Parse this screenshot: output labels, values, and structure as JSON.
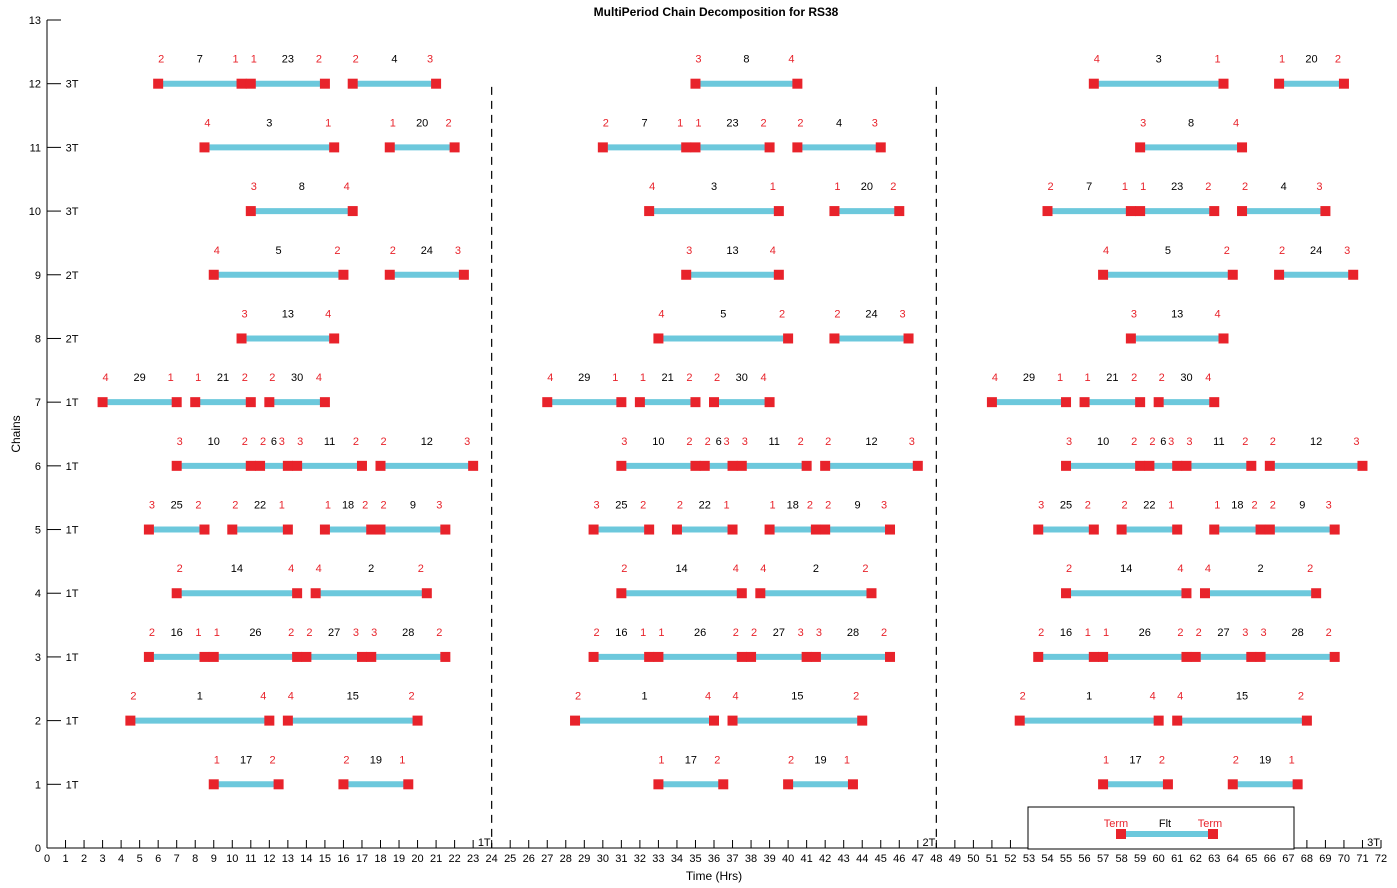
{
  "chart_data": {
    "type": "timeline",
    "title": "MultiPeriod Chain Decomposition for RS38",
    "xlabel": "Time (Hrs)",
    "ylabel": "Chains",
    "xlim": [
      0,
      72
    ],
    "ylim": [
      0,
      13
    ],
    "yticks": [
      0,
      1,
      2,
      3,
      4,
      5,
      6,
      7,
      8,
      9,
      10,
      11,
      12,
      13
    ],
    "chain_labels": [
      "1T",
      "1T",
      "1T",
      "1T",
      "1T",
      "1T",
      "1T",
      "2T",
      "2T",
      "3T",
      "3T",
      "3T"
    ],
    "period_dividers": [
      24,
      48
    ],
    "period_labels": [
      {
        "x": 24,
        "label": "1T"
      },
      {
        "x": 48,
        "label": "2T"
      },
      {
        "x": 72,
        "label": "3T"
      }
    ],
    "colors": {
      "bar": "#6cc8dc",
      "node": "#e8232b",
      "label": "#e8232b"
    },
    "legend": {
      "start_label": "Term",
      "mid_label": "Flt",
      "end_label": "Term",
      "position": "bottom-right"
    },
    "periods": [
      {
        "offset": 0,
        "chains": [
          {
            "y": 1,
            "flights": [
              {
                "s": 9,
                "e": 12.5,
                "from": "1",
                "to": "2",
                "id": "17"
              },
              {
                "s": 16,
                "e": 19.5,
                "from": "2",
                "to": "1",
                "id": "19"
              }
            ]
          },
          {
            "y": 2,
            "flights": [
              {
                "s": 4.5,
                "e": 12,
                "from": "2",
                "to": "4",
                "id": "1"
              },
              {
                "s": 13,
                "e": 20,
                "from": "4",
                "to": "2",
                "id": "15"
              }
            ]
          },
          {
            "y": 3,
            "flights": [
              {
                "s": 5.5,
                "e": 8.5,
                "from": "2",
                "to": "1",
                "id": "16"
              },
              {
                "s": 9,
                "e": 13.5,
                "from": "1",
                "to": "2",
                "id": "26"
              },
              {
                "s": 14,
                "e": 17,
                "from": "2",
                "to": "3",
                "id": "27"
              },
              {
                "s": 17.5,
                "e": 21.5,
                "from": "3",
                "to": "2",
                "id": "28"
              }
            ]
          },
          {
            "y": 4,
            "flights": [
              {
                "s": 7,
                "e": 13.5,
                "from": "2",
                "to": "4",
                "id": "14"
              },
              {
                "s": 14.5,
                "e": 20.5,
                "from": "4",
                "to": "2",
                "id": "2"
              }
            ]
          },
          {
            "y": 5,
            "flights": [
              {
                "s": 5.5,
                "e": 8.5,
                "from": "3",
                "to": "2",
                "id": "25"
              },
              {
                "s": 10,
                "e": 13,
                "from": "2",
                "to": "1",
                "id": "22"
              },
              {
                "s": 15,
                "e": 17.5,
                "from": "1",
                "to": "2",
                "id": "18"
              },
              {
                "s": 18,
                "e": 21.5,
                "from": "2",
                "to": "3",
                "id": "9"
              }
            ]
          },
          {
            "y": 6,
            "flights": [
              {
                "s": 7,
                "e": 11,
                "from": "3",
                "to": "2",
                "id": "10"
              },
              {
                "s": 11.5,
                "e": 13,
                "from": "2",
                "to": "3",
                "id": "6"
              },
              {
                "s": 13.5,
                "e": 17,
                "from": "3",
                "to": "2",
                "id": "11"
              },
              {
                "s": 18,
                "e": 23,
                "from": "2",
                "to": "3",
                "id": "12"
              }
            ]
          },
          {
            "y": 7,
            "flights": [
              {
                "s": 3,
                "e": 7,
                "from": "4",
                "to": "1",
                "id": "29"
              },
              {
                "s": 8,
                "e": 11,
                "from": "1",
                "to": "2",
                "id": "21"
              },
              {
                "s": 12,
                "e": 15,
                "from": "2",
                "to": "4",
                "id": "30"
              }
            ]
          },
          {
            "y": 8,
            "flights": [
              {
                "s": 10.5,
                "e": 15.5,
                "from": "3",
                "to": "4",
                "id": "13"
              }
            ]
          },
          {
            "y": 9,
            "flights": [
              {
                "s": 9,
                "e": 16,
                "from": "4",
                "to": "2",
                "id": "5"
              },
              {
                "s": 18.5,
                "e": 22.5,
                "from": "2",
                "to": "3",
                "id": "24"
              }
            ]
          },
          {
            "y": 10,
            "flights": [
              {
                "s": 11,
                "e": 16.5,
                "from": "3",
                "to": "4",
                "id": "8"
              }
            ]
          },
          {
            "y": 11,
            "flights": [
              {
                "s": 8.5,
                "e": 15.5,
                "from": "4",
                "to": "1",
                "id": "3"
              },
              {
                "s": 18.5,
                "e": 22,
                "from": "1",
                "to": "2",
                "id": "20"
              }
            ]
          },
          {
            "y": 12,
            "flights": [
              {
                "s": 6,
                "e": 10.5,
                "from": "2",
                "to": "1",
                "id": "7"
              },
              {
                "s": 11,
                "e": 15,
                "from": "1",
                "to": "2",
                "id": "23"
              },
              {
                "s": 16.5,
                "e": 21,
                "from": "2",
                "to": "3",
                "id": "4"
              }
            ]
          }
        ]
      },
      {
        "offset": 24,
        "chains": [
          {
            "y": 1,
            "flights": [
              {
                "s": 33,
                "e": 36.5,
                "from": "1",
                "to": "2",
                "id": "17"
              },
              {
                "s": 40,
                "e": 43.5,
                "from": "2",
                "to": "1",
                "id": "19"
              }
            ]
          },
          {
            "y": 2,
            "flights": [
              {
                "s": 28.5,
                "e": 36,
                "from": "2",
                "to": "4",
                "id": "1"
              },
              {
                "s": 37,
                "e": 44,
                "from": "4",
                "to": "2",
                "id": "15"
              }
            ]
          },
          {
            "y": 3,
            "flights": [
              {
                "s": 29.5,
                "e": 32.5,
                "from": "2",
                "to": "1",
                "id": "16"
              },
              {
                "s": 33,
                "e": 37.5,
                "from": "1",
                "to": "2",
                "id": "26"
              },
              {
                "s": 38,
                "e": 41,
                "from": "2",
                "to": "3",
                "id": "27"
              },
              {
                "s": 41.5,
                "e": 45.5,
                "from": "3",
                "to": "2",
                "id": "28"
              }
            ]
          },
          {
            "y": 4,
            "flights": [
              {
                "s": 31,
                "e": 37.5,
                "from": "2",
                "to": "4",
                "id": "14"
              },
              {
                "s": 38.5,
                "e": 44.5,
                "from": "4",
                "to": "2",
                "id": "2"
              }
            ]
          },
          {
            "y": 5,
            "flights": [
              {
                "s": 29.5,
                "e": 32.5,
                "from": "3",
                "to": "2",
                "id": "25"
              },
              {
                "s": 34,
                "e": 37,
                "from": "2",
                "to": "1",
                "id": "22"
              },
              {
                "s": 39,
                "e": 41.5,
                "from": "1",
                "to": "2",
                "id": "18"
              },
              {
                "s": 42,
                "e": 45.5,
                "from": "2",
                "to": "3",
                "id": "9"
              }
            ]
          },
          {
            "y": 6,
            "flights": [
              {
                "s": 31,
                "e": 35,
                "from": "3",
                "to": "2",
                "id": "10"
              },
              {
                "s": 35.5,
                "e": 37,
                "from": "2",
                "to": "3",
                "id": "6"
              },
              {
                "s": 37.5,
                "e": 41,
                "from": "3",
                "to": "2",
                "id": "11"
              },
              {
                "s": 42,
                "e": 47,
                "from": "2",
                "to": "3",
                "id": "12"
              }
            ]
          },
          {
            "y": 7,
            "flights": [
              {
                "s": 27,
                "e": 31,
                "from": "4",
                "to": "1",
                "id": "29"
              },
              {
                "s": 32,
                "e": 35,
                "from": "1",
                "to": "2",
                "id": "21"
              },
              {
                "s": 36,
                "e": 39,
                "from": "2",
                "to": "4",
                "id": "30"
              }
            ]
          },
          {
            "y": 8,
            "flights": [
              {
                "s": 33,
                "e": 40,
                "from": "4",
                "to": "2",
                "id": "5"
              },
              {
                "s": 42.5,
                "e": 46.5,
                "from": "2",
                "to": "3",
                "id": "24"
              }
            ]
          },
          {
            "y": 9,
            "flights": [
              {
                "s": 34.5,
                "e": 39.5,
                "from": "3",
                "to": "4",
                "id": "13"
              }
            ]
          },
          {
            "y": 10,
            "flights": [
              {
                "s": 32.5,
                "e": 39.5,
                "from": "4",
                "to": "1",
                "id": "3"
              },
              {
                "s": 42.5,
                "e": 46,
                "from": "1",
                "to": "2",
                "id": "20"
              }
            ]
          },
          {
            "y": 11,
            "flights": [
              {
                "s": 30,
                "e": 34.5,
                "from": "2",
                "to": "1",
                "id": "7"
              },
              {
                "s": 35,
                "e": 39,
                "from": "1",
                "to": "2",
                "id": "23"
              },
              {
                "s": 40.5,
                "e": 45,
                "from": "2",
                "to": "3",
                "id": "4"
              }
            ]
          },
          {
            "y": 12,
            "flights": [
              {
                "s": 35,
                "e": 40.5,
                "from": "3",
                "to": "4",
                "id": "8"
              }
            ]
          }
        ]
      },
      {
        "offset": 48,
        "chains": [
          {
            "y": 1,
            "flights": [
              {
                "s": 57,
                "e": 60.5,
                "from": "1",
                "to": "2",
                "id": "17"
              },
              {
                "s": 64,
                "e": 67.5,
                "from": "2",
                "to": "1",
                "id": "19"
              }
            ]
          },
          {
            "y": 2,
            "flights": [
              {
                "s": 52.5,
                "e": 60,
                "from": "2",
                "to": "4",
                "id": "1"
              },
              {
                "s": 61,
                "e": 68,
                "from": "4",
                "to": "2",
                "id": "15"
              }
            ]
          },
          {
            "y": 3,
            "flights": [
              {
                "s": 53.5,
                "e": 56.5,
                "from": "2",
                "to": "1",
                "id": "16"
              },
              {
                "s": 57,
                "e": 61.5,
                "from": "1",
                "to": "2",
                "id": "26"
              },
              {
                "s": 62,
                "e": 65,
                "from": "2",
                "to": "3",
                "id": "27"
              },
              {
                "s": 65.5,
                "e": 69.5,
                "from": "3",
                "to": "2",
                "id": "28"
              }
            ]
          },
          {
            "y": 4,
            "flights": [
              {
                "s": 55,
                "e": 61.5,
                "from": "2",
                "to": "4",
                "id": "14"
              },
              {
                "s": 62.5,
                "e": 68.5,
                "from": "4",
                "to": "2",
                "id": "2"
              }
            ]
          },
          {
            "y": 5,
            "flights": [
              {
                "s": 53.5,
                "e": 56.5,
                "from": "3",
                "to": "2",
                "id": "25"
              },
              {
                "s": 58,
                "e": 61,
                "from": "2",
                "to": "1",
                "id": "22"
              },
              {
                "s": 63,
                "e": 65.5,
                "from": "1",
                "to": "2",
                "id": "18"
              },
              {
                "s": 66,
                "e": 69.5,
                "from": "2",
                "to": "3",
                "id": "9"
              }
            ]
          },
          {
            "y": 6,
            "flights": [
              {
                "s": 55,
                "e": 59,
                "from": "3",
                "to": "2",
                "id": "10"
              },
              {
                "s": 59.5,
                "e": 61,
                "from": "2",
                "to": "3",
                "id": "6"
              },
              {
                "s": 61.5,
                "e": 65,
                "from": "3",
                "to": "2",
                "id": "11"
              },
              {
                "s": 66,
                "e": 71,
                "from": "2",
                "to": "3",
                "id": "12"
              }
            ]
          },
          {
            "y": 7,
            "flights": [
              {
                "s": 51,
                "e": 55,
                "from": "4",
                "to": "1",
                "id": "29"
              },
              {
                "s": 56,
                "e": 59,
                "from": "1",
                "to": "2",
                "id": "21"
              },
              {
                "s": 60,
                "e": 63,
                "from": "2",
                "to": "4",
                "id": "30"
              }
            ]
          },
          {
            "y": 8,
            "flights": [
              {
                "s": 58.5,
                "e": 63.5,
                "from": "3",
                "to": "4",
                "id": "13"
              }
            ]
          },
          {
            "y": 9,
            "flights": [
              {
                "s": 57,
                "e": 64,
                "from": "4",
                "to": "2",
                "id": "5"
              },
              {
                "s": 66.5,
                "e": 70.5,
                "from": "2",
                "to": "3",
                "id": "24"
              }
            ]
          },
          {
            "y": 10,
            "flights": [
              {
                "s": 54,
                "e": 58.5,
                "from": "2",
                "to": "1",
                "id": "7"
              },
              {
                "s": 59,
                "e": 63,
                "from": "1",
                "to": "2",
                "id": "23"
              },
              {
                "s": 64.5,
                "e": 69,
                "from": "2",
                "to": "3",
                "id": "4"
              }
            ]
          },
          {
            "y": 11,
            "flights": [
              {
                "s": 59,
                "e": 64.5,
                "from": "3",
                "to": "4",
                "id": "8"
              }
            ]
          },
          {
            "y": 12,
            "flights": [
              {
                "s": 56.5,
                "e": 63.5,
                "from": "4",
                "to": "1",
                "id": "3"
              },
              {
                "s": 66.5,
                "e": 70,
                "from": "1",
                "to": "2",
                "id": "20"
              }
            ]
          }
        ]
      }
    ]
  }
}
